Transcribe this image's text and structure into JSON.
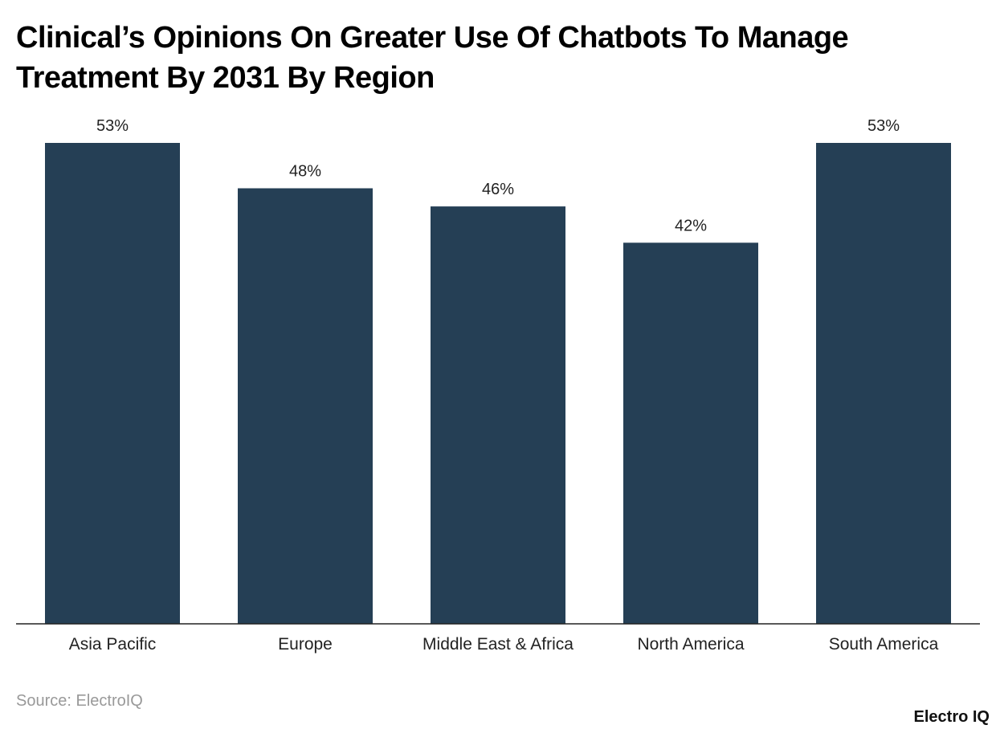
{
  "title": "Clinical’s Opinions On Greater Use Of Chatbots To Manage Treatment By 2031 By Region",
  "source": "Source: ElectroIQ",
  "logo": "Electro IQ",
  "chart_data": {
    "type": "bar",
    "title": "Clinical’s Opinions On Greater Use Of Chatbots To Manage Treatment By 2031 By Region",
    "categories": [
      "Asia Pacific",
      "Europe",
      "Middle East & Africa",
      "North America",
      "South America"
    ],
    "values": [
      53,
      48,
      46,
      42,
      53
    ],
    "value_labels": [
      "53%",
      "48%",
      "46%",
      "42%",
      "53%"
    ],
    "xlabel": "",
    "ylabel": "",
    "ylim": [
      0,
      53
    ],
    "grid": false,
    "bar_color": "#253f55"
  }
}
